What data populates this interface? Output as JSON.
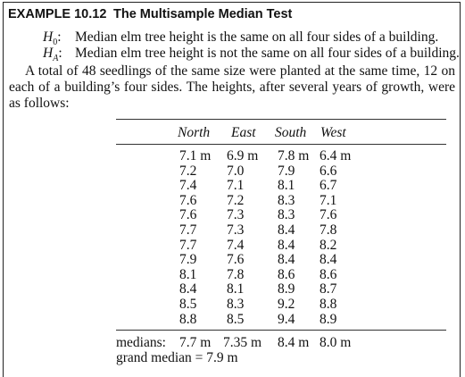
{
  "example": {
    "number": "EXAMPLE 10.12",
    "title": "The Multisample Median Test"
  },
  "hypotheses": [
    {
      "symbol": "H",
      "sub": "0",
      "colon": ":",
      "text": "Median elm tree height is the same on all four sides of a building."
    },
    {
      "symbol": "H",
      "sub": "A",
      "colon": ":",
      "text": "Median elm tree height is not the same on all four sides of a building."
    }
  ],
  "paragraph": "A total of 48 seedlings of the same size were planted at the same time, 12 on each of a building’s four sides. The heights, after several years of growth, were as follows:",
  "table": {
    "columns": [
      "North",
      "East",
      "South",
      "West"
    ],
    "rows": [
      [
        "7.1 m",
        "6.9 m",
        "7.8 m",
        "6.4 m"
      ],
      [
        "7.2",
        "7.0",
        "7.9",
        "6.6"
      ],
      [
        "7.4",
        "7.1",
        "8.1",
        "6.7"
      ],
      [
        "7.6",
        "7.2",
        "8.3",
        "7.1"
      ],
      [
        "7.6",
        "7.3",
        "8.3",
        "7.6"
      ],
      [
        "7.7",
        "7.3",
        "8.4",
        "7.8"
      ],
      [
        "7.7",
        "7.4",
        "8.4",
        "8.2"
      ],
      [
        "7.9",
        "7.6",
        "8.4",
        "8.4"
      ],
      [
        "8.1",
        "7.8",
        "8.6",
        "8.6"
      ],
      [
        "8.4",
        "8.1",
        "8.9",
        "8.7"
      ],
      [
        "8.5",
        "8.3",
        "9.2",
        "8.8"
      ],
      [
        "8.8",
        "8.5",
        "9.4",
        "8.9"
      ]
    ],
    "medians_label": "medians:",
    "medians": [
      "7.7 m",
      "7.35 m",
      "8.4 m",
      "8.0 m"
    ],
    "grand_median": "grand median = 7.9 m"
  }
}
